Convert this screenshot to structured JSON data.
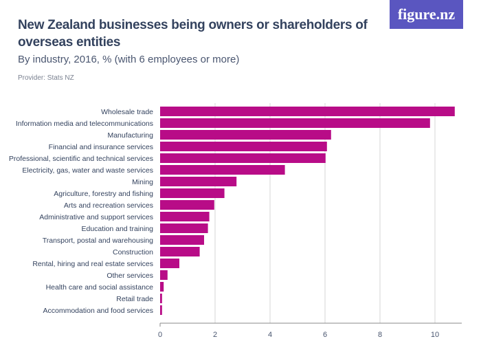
{
  "header": {
    "title": "New Zealand businesses being owners or shareholders of overseas entities",
    "subtitle": "By industry, 2016, % (with 6 employees or more)",
    "provider": "Provider: Stats NZ",
    "logo": "figure.nz"
  },
  "colors": {
    "bar": "#b80c87",
    "grid": "#d6d6d6",
    "logo_bg": "#5a56c0"
  },
  "chart_data": {
    "type": "bar",
    "orientation": "horizontal",
    "title": "New Zealand businesses being owners or shareholders of overseas entities",
    "subtitle": "By industry, 2016, % (with 6 employees or more)",
    "categories": [
      "Wholesale trade",
      "Information media and telecommunications",
      "Manufacturing",
      "Financial and insurance services",
      "Professional, scientific and technical services",
      "Electricity, gas, water and waste services",
      "Mining",
      "Agriculture, forestry and fishing",
      "Arts and recreation services",
      "Administrative and support services",
      "Education and training",
      "Transport, postal and warehousing",
      "Construction",
      "Rental, hiring and real estate services",
      "Other services",
      "Health care and social assistance",
      "Retail trade",
      "Accommodation and food services"
    ],
    "values": [
      10.72,
      9.82,
      6.22,
      6.07,
      6.02,
      4.54,
      2.78,
      2.34,
      1.97,
      1.79,
      1.74,
      1.6,
      1.44,
      0.7,
      0.27,
      0.13,
      0.07,
      0.07
    ],
    "xlim": [
      0,
      11
    ],
    "xticks": [
      0,
      2,
      4,
      6,
      8,
      10
    ],
    "grid": true
  }
}
